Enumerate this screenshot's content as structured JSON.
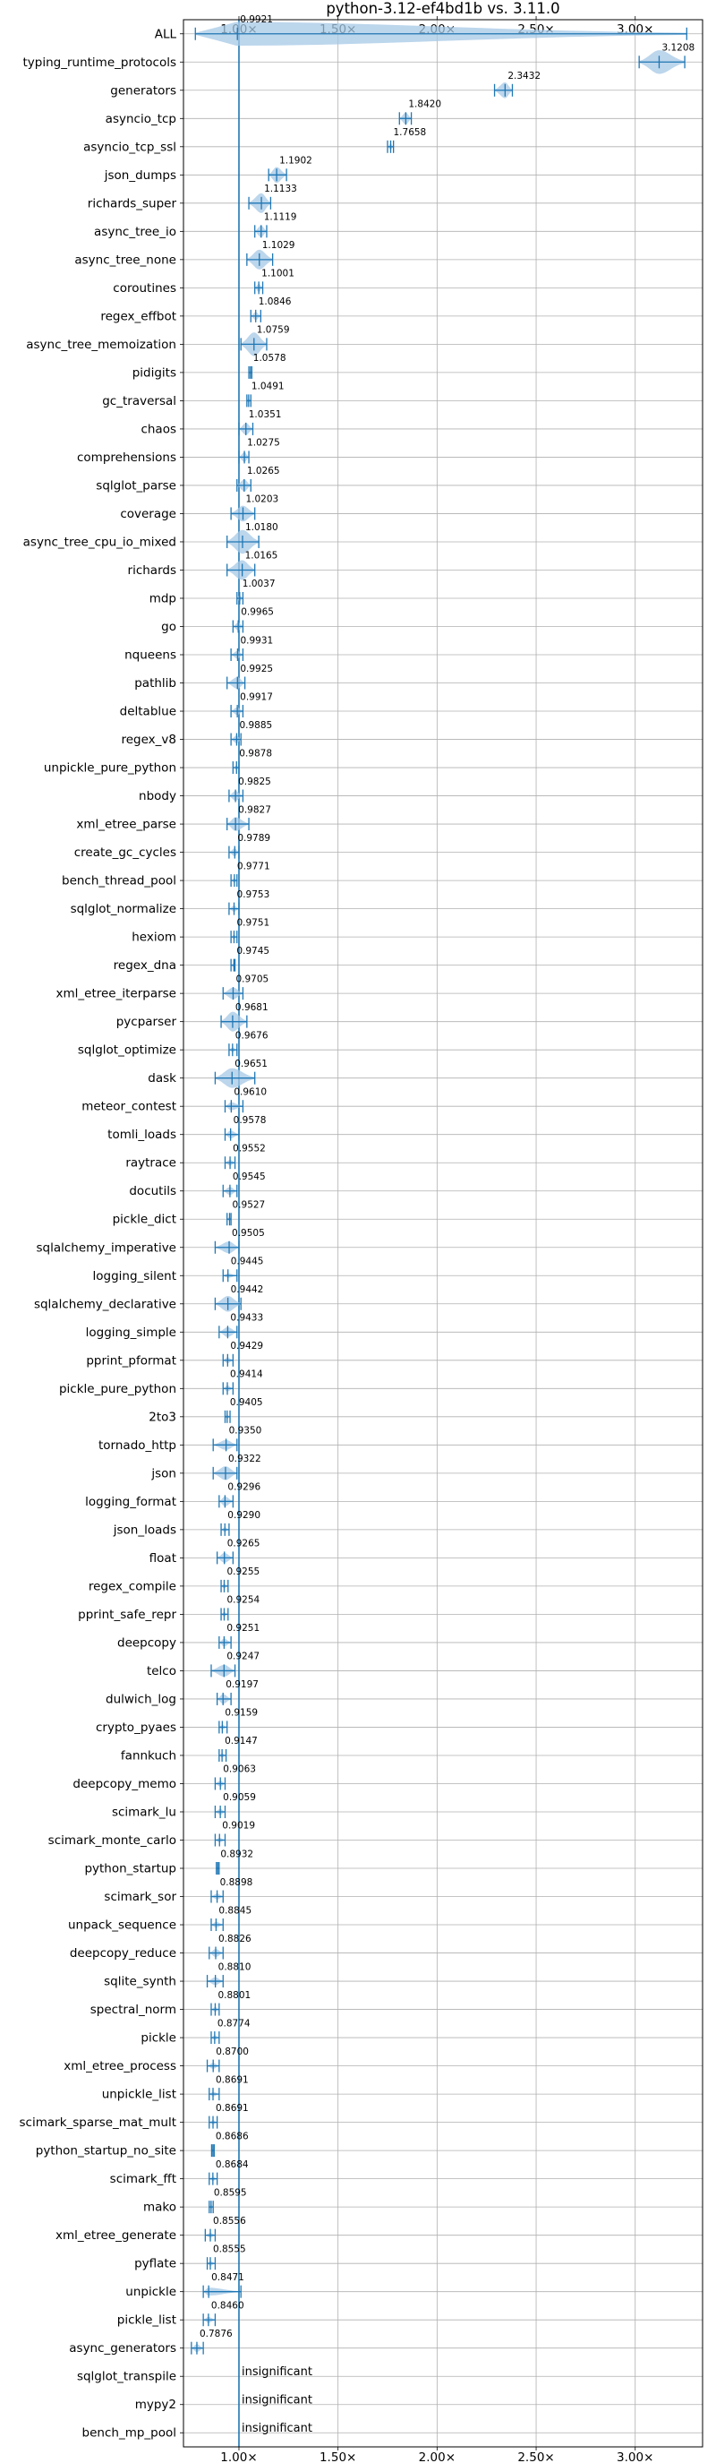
{
  "chart_data": {
    "type": "violin",
    "title": "python-3.12-ef4bd1b vs. 3.11.0",
    "xlim": [
      0.72,
      3.34
    ],
    "x_ticks": [
      1.0,
      1.5,
      2.0,
      2.5,
      3.0
    ],
    "x_tick_labels": [
      "1.00×",
      "1.50×",
      "2.00×",
      "2.50×",
      "3.00×"
    ],
    "reference_line": 1.0,
    "grid": true,
    "color": "#1f77b4",
    "fill_color": "#a6c8e6",
    "rows": [
      {
        "name": "ALL",
        "value": 0.9921,
        "min": 0.78,
        "max": 3.26,
        "width": 0.08,
        "label": "0.9921"
      },
      {
        "name": "typing_runtime_protocols",
        "value": 3.1208,
        "min": 3.02,
        "max": 3.25,
        "width": 0.09,
        "label": "3.1208"
      },
      {
        "name": "generators",
        "value": 2.3432,
        "min": 2.29,
        "max": 2.38,
        "width": 0.04,
        "label": "2.3432"
      },
      {
        "name": "asyncio_tcp",
        "value": 1.842,
        "min": 1.81,
        "max": 1.87,
        "width": 0.03,
        "label": "1.8420"
      },
      {
        "name": "asyncio_tcp_ssl",
        "value": 1.7658,
        "min": 1.75,
        "max": 1.78,
        "width": 0.015,
        "label": "1.7658"
      },
      {
        "name": "json_dumps",
        "value": 1.1902,
        "min": 1.15,
        "max": 1.24,
        "width": 0.04,
        "label": "1.1902"
      },
      {
        "name": "richards_super",
        "value": 1.1133,
        "min": 1.05,
        "max": 1.16,
        "width": 0.05,
        "label": "1.1133"
      },
      {
        "name": "async_tree_io",
        "value": 1.1119,
        "min": 1.08,
        "max": 1.14,
        "width": 0.03,
        "label": "1.1119"
      },
      {
        "name": "async_tree_none",
        "value": 1.1029,
        "min": 1.04,
        "max": 1.17,
        "width": 0.05,
        "label": "1.1029"
      },
      {
        "name": "coroutines",
        "value": 1.1001,
        "min": 1.08,
        "max": 1.12,
        "width": 0.02,
        "label": "1.1001"
      },
      {
        "name": "regex_effbot",
        "value": 1.0846,
        "min": 1.06,
        "max": 1.11,
        "width": 0.02,
        "label": "1.0846"
      },
      {
        "name": "async_tree_memoization",
        "value": 1.0759,
        "min": 1.01,
        "max": 1.14,
        "width": 0.06,
        "label": "1.0759"
      },
      {
        "name": "pidigits",
        "value": 1.0578,
        "min": 1.05,
        "max": 1.065,
        "width": 0.006,
        "label": "1.0578"
      },
      {
        "name": "gc_traversal",
        "value": 1.0491,
        "min": 1.04,
        "max": 1.06,
        "width": 0.006,
        "label": "1.0491"
      },
      {
        "name": "chaos",
        "value": 1.0351,
        "min": 1.0,
        "max": 1.07,
        "width": 0.03,
        "label": "1.0351"
      },
      {
        "name": "comprehensions",
        "value": 1.0275,
        "min": 1.0,
        "max": 1.05,
        "width": 0.025,
        "label": "1.0275"
      },
      {
        "name": "sqlglot_parse",
        "value": 1.0265,
        "min": 0.99,
        "max": 1.06,
        "width": 0.03,
        "label": "1.0265"
      },
      {
        "name": "coverage",
        "value": 1.0203,
        "min": 0.96,
        "max": 1.08,
        "width": 0.04,
        "label": "1.0203"
      },
      {
        "name": "async_tree_cpu_io_mixed",
        "value": 1.018,
        "min": 0.94,
        "max": 1.1,
        "width": 0.06,
        "label": "1.0180"
      },
      {
        "name": "richards",
        "value": 1.0165,
        "min": 0.94,
        "max": 1.08,
        "width": 0.05,
        "label": "1.0165"
      },
      {
        "name": "mdp",
        "value": 1.0037,
        "min": 0.99,
        "max": 1.02,
        "width": 0.015,
        "label": "1.0037"
      },
      {
        "name": "go",
        "value": 0.9965,
        "min": 0.97,
        "max": 1.02,
        "width": 0.02,
        "label": "0.9965"
      },
      {
        "name": "nqueens",
        "value": 0.9931,
        "min": 0.96,
        "max": 1.02,
        "width": 0.02,
        "label": "0.9931"
      },
      {
        "name": "pathlib",
        "value": 0.9925,
        "min": 0.94,
        "max": 1.03,
        "width": 0.03,
        "label": "0.9925"
      },
      {
        "name": "deltablue",
        "value": 0.9917,
        "min": 0.96,
        "max": 1.02,
        "width": 0.02,
        "label": "0.9917"
      },
      {
        "name": "regex_v8",
        "value": 0.9885,
        "min": 0.96,
        "max": 1.01,
        "width": 0.02,
        "label": "0.9885"
      },
      {
        "name": "unpickle_pure_python",
        "value": 0.9878,
        "min": 0.97,
        "max": 1.0,
        "width": 0.012,
        "label": "0.9878"
      },
      {
        "name": "nbody",
        "value": 0.9825,
        "min": 0.95,
        "max": 1.02,
        "width": 0.025,
        "label": "0.9825"
      },
      {
        "name": "xml_etree_parse",
        "value": 0.9827,
        "min": 0.94,
        "max": 1.05,
        "width": 0.035,
        "label": "0.9827"
      },
      {
        "name": "create_gc_cycles",
        "value": 0.9789,
        "min": 0.95,
        "max": 1.0,
        "width": 0.02,
        "label": "0.9789"
      },
      {
        "name": "bench_thread_pool",
        "value": 0.9771,
        "min": 0.96,
        "max": 0.99,
        "width": 0.012,
        "label": "0.9771"
      },
      {
        "name": "sqlglot_normalize",
        "value": 0.9753,
        "min": 0.95,
        "max": 1.0,
        "width": 0.015,
        "label": "0.9753"
      },
      {
        "name": "hexiom",
        "value": 0.9751,
        "min": 0.96,
        "max": 0.99,
        "width": 0.01,
        "label": "0.9751"
      },
      {
        "name": "regex_dna",
        "value": 0.9745,
        "min": 0.96,
        "max": 0.98,
        "width": 0.008,
        "label": "0.9745"
      },
      {
        "name": "xml_etree_iterparse",
        "value": 0.9705,
        "min": 0.92,
        "max": 1.02,
        "width": 0.03,
        "label": "0.9705"
      },
      {
        "name": "pycparser",
        "value": 0.9681,
        "min": 0.91,
        "max": 1.04,
        "width": 0.05,
        "label": "0.9681"
      },
      {
        "name": "sqlglot_optimize",
        "value": 0.9676,
        "min": 0.95,
        "max": 0.99,
        "width": 0.012,
        "label": "0.9676"
      },
      {
        "name": "dask",
        "value": 0.9651,
        "min": 0.88,
        "max": 1.08,
        "width": 0.05,
        "label": "0.9651"
      },
      {
        "name": "meteor_contest",
        "value": 0.961,
        "min": 0.93,
        "max": 1.02,
        "width": 0.02,
        "label": "0.9610"
      },
      {
        "name": "tomli_loads",
        "value": 0.9578,
        "min": 0.93,
        "max": 1.0,
        "width": 0.02,
        "label": "0.9578"
      },
      {
        "name": "raytrace",
        "value": 0.9552,
        "min": 0.93,
        "max": 0.98,
        "width": 0.015,
        "label": "0.9552"
      },
      {
        "name": "docutils",
        "value": 0.9545,
        "min": 0.92,
        "max": 0.99,
        "width": 0.02,
        "label": "0.9545"
      },
      {
        "name": "pickle_dict",
        "value": 0.9527,
        "min": 0.94,
        "max": 0.96,
        "width": 0.008,
        "label": "0.9527"
      },
      {
        "name": "sqlalchemy_imperative",
        "value": 0.9505,
        "min": 0.88,
        "max": 1.0,
        "width": 0.03,
        "label": "0.9505"
      },
      {
        "name": "logging_silent",
        "value": 0.9445,
        "min": 0.92,
        "max": 0.99,
        "width": 0.01,
        "label": "0.9445"
      },
      {
        "name": "sqlalchemy_declarative",
        "value": 0.9442,
        "min": 0.88,
        "max": 1.01,
        "width": 0.04,
        "label": "0.9442"
      },
      {
        "name": "logging_simple",
        "value": 0.9433,
        "min": 0.9,
        "max": 0.99,
        "width": 0.025,
        "label": "0.9433"
      },
      {
        "name": "pprint_pformat",
        "value": 0.9429,
        "min": 0.92,
        "max": 0.97,
        "width": 0.015,
        "label": "0.9429"
      },
      {
        "name": "pickle_pure_python",
        "value": 0.9414,
        "min": 0.92,
        "max": 0.97,
        "width": 0.015,
        "label": "0.9414"
      },
      {
        "name": "2to3",
        "value": 0.9405,
        "min": 0.93,
        "max": 0.955,
        "width": 0.008,
        "label": "0.9405"
      },
      {
        "name": "tornado_http",
        "value": 0.935,
        "min": 0.87,
        "max": 0.99,
        "width": 0.025,
        "label": "0.9350"
      },
      {
        "name": "json",
        "value": 0.9322,
        "min": 0.87,
        "max": 0.99,
        "width": 0.035,
        "label": "0.9322"
      },
      {
        "name": "logging_format",
        "value": 0.9296,
        "min": 0.9,
        "max": 0.97,
        "width": 0.025,
        "label": "0.9296"
      },
      {
        "name": "json_loads",
        "value": 0.929,
        "min": 0.91,
        "max": 0.95,
        "width": 0.012,
        "label": "0.9290"
      },
      {
        "name": "float",
        "value": 0.9265,
        "min": 0.89,
        "max": 0.97,
        "width": 0.025,
        "label": "0.9265"
      },
      {
        "name": "regex_compile",
        "value": 0.9255,
        "min": 0.91,
        "max": 0.945,
        "width": 0.01,
        "label": "0.9255"
      },
      {
        "name": "pprint_safe_repr",
        "value": 0.9254,
        "min": 0.91,
        "max": 0.945,
        "width": 0.01,
        "label": "0.9254"
      },
      {
        "name": "deepcopy",
        "value": 0.9251,
        "min": 0.9,
        "max": 0.96,
        "width": 0.02,
        "label": "0.9251"
      },
      {
        "name": "telco",
        "value": 0.9247,
        "min": 0.86,
        "max": 0.98,
        "width": 0.03,
        "label": "0.9247"
      },
      {
        "name": "dulwich_log",
        "value": 0.9197,
        "min": 0.89,
        "max": 0.96,
        "width": 0.025,
        "label": "0.9197"
      },
      {
        "name": "crypto_pyaes",
        "value": 0.9159,
        "min": 0.9,
        "max": 0.94,
        "width": 0.012,
        "label": "0.9159"
      },
      {
        "name": "fannkuch",
        "value": 0.9147,
        "min": 0.9,
        "max": 0.935,
        "width": 0.01,
        "label": "0.9147"
      },
      {
        "name": "deepcopy_memo",
        "value": 0.9063,
        "min": 0.88,
        "max": 0.93,
        "width": 0.015,
        "label": "0.9063"
      },
      {
        "name": "scimark_lu",
        "value": 0.9059,
        "min": 0.88,
        "max": 0.93,
        "width": 0.015,
        "label": "0.9059"
      },
      {
        "name": "scimark_monte_carlo",
        "value": 0.9019,
        "min": 0.88,
        "max": 0.93,
        "width": 0.012,
        "label": "0.9019"
      },
      {
        "name": "python_startup",
        "value": 0.8932,
        "min": 0.886,
        "max": 0.9,
        "width": 0.004,
        "label": "0.8932"
      },
      {
        "name": "scimark_sor",
        "value": 0.8898,
        "min": 0.86,
        "max": 0.92,
        "width": 0.015,
        "label": "0.8898"
      },
      {
        "name": "unpack_sequence",
        "value": 0.8845,
        "min": 0.86,
        "max": 0.92,
        "width": 0.015,
        "label": "0.8845"
      },
      {
        "name": "deepcopy_reduce",
        "value": 0.8826,
        "min": 0.85,
        "max": 0.92,
        "width": 0.02,
        "label": "0.8826"
      },
      {
        "name": "sqlite_synth",
        "value": 0.881,
        "min": 0.84,
        "max": 0.92,
        "width": 0.02,
        "label": "0.8810"
      },
      {
        "name": "spectral_norm",
        "value": 0.8801,
        "min": 0.86,
        "max": 0.9,
        "width": 0.012,
        "label": "0.8801"
      },
      {
        "name": "pickle",
        "value": 0.8774,
        "min": 0.86,
        "max": 0.9,
        "width": 0.012,
        "label": "0.8774"
      },
      {
        "name": "xml_etree_process",
        "value": 0.87,
        "min": 0.84,
        "max": 0.9,
        "width": 0.015,
        "label": "0.8700"
      },
      {
        "name": "unpickle_list",
        "value": 0.8691,
        "min": 0.85,
        "max": 0.9,
        "width": 0.012,
        "label": "0.8691"
      },
      {
        "name": "scimark_sparse_mat_mult",
        "value": 0.8691,
        "min": 0.85,
        "max": 0.89,
        "width": 0.01,
        "label": "0.8691"
      },
      {
        "name": "python_startup_no_site",
        "value": 0.8686,
        "min": 0.862,
        "max": 0.875,
        "width": 0.004,
        "label": "0.8686"
      },
      {
        "name": "scimark_fft",
        "value": 0.8684,
        "min": 0.85,
        "max": 0.89,
        "width": 0.01,
        "label": "0.8684"
      },
      {
        "name": "mako",
        "value": 0.8595,
        "min": 0.85,
        "max": 0.87,
        "width": 0.006,
        "label": "0.8595"
      },
      {
        "name": "xml_etree_generate",
        "value": 0.8556,
        "min": 0.83,
        "max": 0.88,
        "width": 0.012,
        "label": "0.8556"
      },
      {
        "name": "pyflate",
        "value": 0.8555,
        "min": 0.84,
        "max": 0.88,
        "width": 0.012,
        "label": "0.8555"
      },
      {
        "name": "unpickle",
        "value": 0.8471,
        "min": 0.82,
        "max": 1.01,
        "width": 0.02,
        "label": "0.8471"
      },
      {
        "name": "pickle_list",
        "value": 0.846,
        "min": 0.82,
        "max": 0.88,
        "width": 0.015,
        "label": "0.8460"
      },
      {
        "name": "async_generators",
        "value": 0.7876,
        "min": 0.76,
        "max": 0.82,
        "width": 0.02,
        "label": "0.7876"
      },
      {
        "name": "sqlglot_transpile",
        "value": null,
        "label": "insignificant"
      },
      {
        "name": "mypy2",
        "value": null,
        "label": "insignificant"
      },
      {
        "name": "bench_mp_pool",
        "value": null,
        "label": "insignificant"
      }
    ]
  }
}
